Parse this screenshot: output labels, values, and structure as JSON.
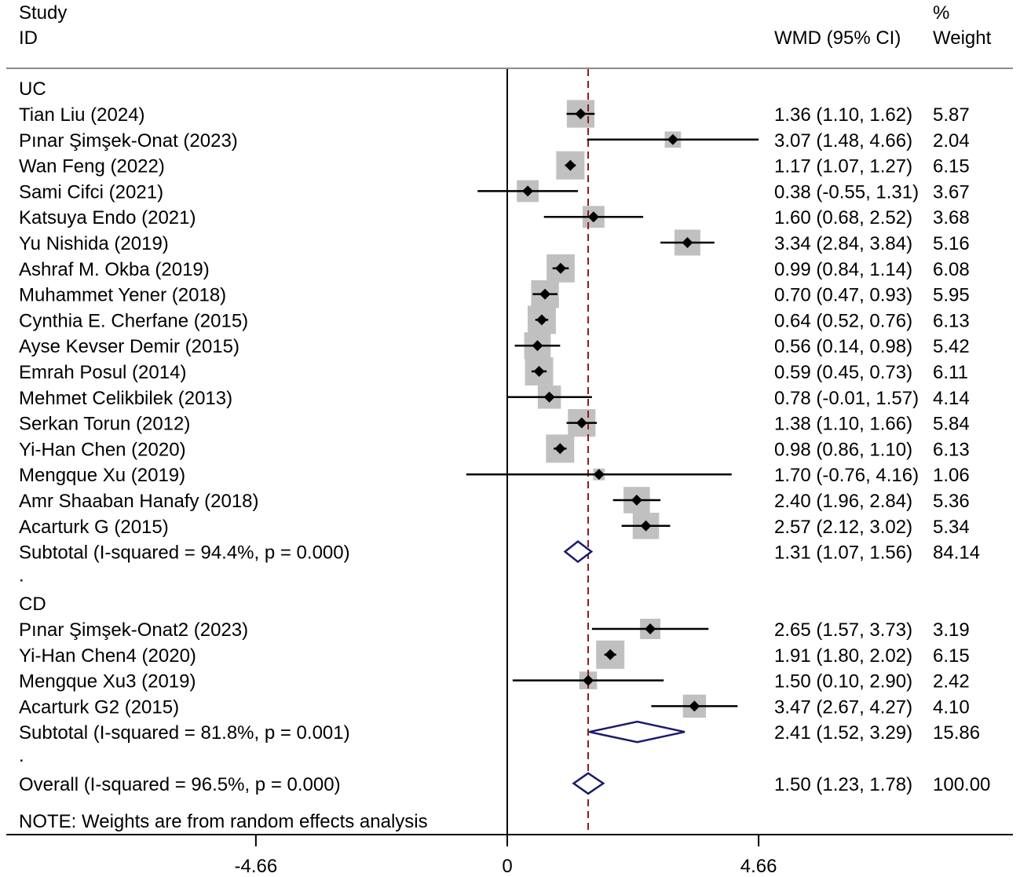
{
  "chart_data": {
    "type": "forest",
    "header": {
      "study_line1": "Study",
      "study_line2": "ID",
      "effect": "WMD (95% CI)",
      "weight_line1": "%",
      "weight_line2": "Weight"
    },
    "x_ticks": [
      {
        "value": -4.66,
        "label": "-4.66"
      },
      {
        "value": 0,
        "label": "0"
      },
      {
        "value": 4.66,
        "label": "4.66"
      }
    ],
    "xlim": [
      -9.32,
      9.32
    ],
    "overall_line": 1.5,
    "note": "NOTE: Weights are from random effects analysis",
    "groups": [
      {
        "label": "UC",
        "studies": [
          {
            "name": "Tian Liu (2024)",
            "est": 1.36,
            "lo": 1.1,
            "hi": 1.62,
            "ci": "1.36 (1.10, 1.62)",
            "weight": "5.87"
          },
          {
            "name": "Pınar Şimşek-Onat (2023)",
            "est": 3.07,
            "lo": 1.48,
            "hi": 4.66,
            "ci": "3.07 (1.48, 4.66)",
            "weight": "2.04"
          },
          {
            "name": "Wan Feng (2022)",
            "est": 1.17,
            "lo": 1.07,
            "hi": 1.27,
            "ci": "1.17 (1.07, 1.27)",
            "weight": "6.15"
          },
          {
            "name": "Sami Cifci (2021)",
            "est": 0.38,
            "lo": -0.55,
            "hi": 1.31,
            "ci": "0.38 (-0.55, 1.31)",
            "weight": "3.67"
          },
          {
            "name": "Katsuya Endo (2021)",
            "est": 1.6,
            "lo": 0.68,
            "hi": 2.52,
            "ci": "1.60 (0.68, 2.52)",
            "weight": "3.68"
          },
          {
            "name": "Yu Nishida (2019)",
            "est": 3.34,
            "lo": 2.84,
            "hi": 3.84,
            "ci": "3.34 (2.84, 3.84)",
            "weight": "5.16"
          },
          {
            "name": "Ashraf M. Okba (2019)",
            "est": 0.99,
            "lo": 0.84,
            "hi": 1.14,
            "ci": "0.99 (0.84, 1.14)",
            "weight": "6.08"
          },
          {
            "name": "Muhammet Yener (2018)",
            "est": 0.7,
            "lo": 0.47,
            "hi": 0.93,
            "ci": "0.70 (0.47, 0.93)",
            "weight": "5.95"
          },
          {
            "name": "Cynthia E. Cherfane (2015)",
            "est": 0.64,
            "lo": 0.52,
            "hi": 0.76,
            "ci": "0.64 (0.52, 0.76)",
            "weight": "6.13"
          },
          {
            "name": "Ayse Kevser Demir (2015)",
            "est": 0.56,
            "lo": 0.14,
            "hi": 0.98,
            "ci": "0.56 (0.14, 0.98)",
            "weight": "5.42"
          },
          {
            "name": "Emrah Posul (2014)",
            "est": 0.59,
            "lo": 0.45,
            "hi": 0.73,
            "ci": "0.59 (0.45, 0.73)",
            "weight": "6.11"
          },
          {
            "name": "Mehmet Celikbilek (2013)",
            "est": 0.78,
            "lo": -0.01,
            "hi": 1.57,
            "ci": "0.78 (-0.01, 1.57)",
            "weight": "4.14"
          },
          {
            "name": "Serkan Torun (2012)",
            "est": 1.38,
            "lo": 1.1,
            "hi": 1.66,
            "ci": "1.38 (1.10, 1.66)",
            "weight": "5.84"
          },
          {
            "name": "Yi-Han Chen (2020)",
            "est": 0.98,
            "lo": 0.86,
            "hi": 1.1,
            "ci": "0.98 (0.86, 1.10)",
            "weight": "6.13"
          },
          {
            "name": "Mengque Xu (2019)",
            "est": 1.7,
            "lo": -0.76,
            "hi": 4.16,
            "ci": "1.70 (-0.76, 4.16)",
            "weight": "1.06"
          },
          {
            "name": "Amr Shaaban Hanafy (2018)",
            "est": 2.4,
            "lo": 1.96,
            "hi": 2.84,
            "ci": "2.40 (1.96, 2.84)",
            "weight": "5.36"
          },
          {
            "name": "Acarturk G (2015)",
            "est": 2.57,
            "lo": 2.12,
            "hi": 3.02,
            "ci": "2.57 (2.12, 3.02)",
            "weight": "5.34"
          }
        ],
        "subtotal": {
          "label": "Subtotal  (I-squared = 94.4%, p = 0.000)",
          "est": 1.31,
          "lo": 1.07,
          "hi": 1.56,
          "ci": "1.31 (1.07, 1.56)",
          "weight": "84.14"
        }
      },
      {
        "label": "CD",
        "studies": [
          {
            "name": "Pınar Şimşek-Onat2 (2023)",
            "est": 2.65,
            "lo": 1.57,
            "hi": 3.73,
            "ci": "2.65 (1.57, 3.73)",
            "weight": "3.19"
          },
          {
            "name": "Yi-Han Chen4 (2020)",
            "est": 1.91,
            "lo": 1.8,
            "hi": 2.02,
            "ci": "1.91 (1.80, 2.02)",
            "weight": "6.15"
          },
          {
            "name": "Mengque Xu3 (2019)",
            "est": 1.5,
            "lo": 0.1,
            "hi": 2.9,
            "ci": "1.50 (0.10, 2.90)",
            "weight": "2.42"
          },
          {
            "name": "Acarturk G2 (2015)",
            "est": 3.47,
            "lo": 2.67,
            "hi": 4.27,
            "ci": "3.47 (2.67, 4.27)",
            "weight": "4.10"
          }
        ],
        "subtotal": {
          "label": "Subtotal  (I-squared = 81.8%, p = 0.001)",
          "est": 2.41,
          "lo": 1.52,
          "hi": 3.29,
          "ci": "2.41 (1.52, 3.29)",
          "weight": "15.86"
        }
      }
    ],
    "overall": {
      "label": "Overall  (I-squared = 96.5%, p = 0.000)",
      "est": 1.5,
      "lo": 1.23,
      "hi": 1.78,
      "ci": "1.50 (1.23, 1.78)",
      "weight": "100.00"
    },
    "colors": {
      "box": "#c0c0c0",
      "diamond": "#1b1b6b",
      "ref_line": "#8b1a1a",
      "text": "#000000"
    }
  }
}
